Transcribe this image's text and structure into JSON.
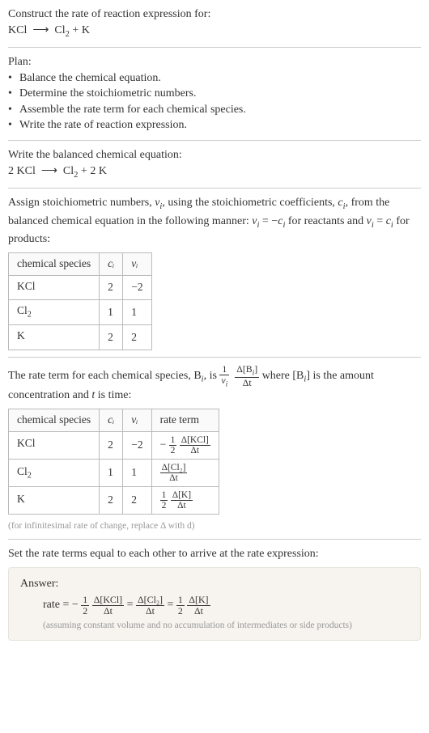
{
  "intro": {
    "line1": "Construct the rate of reaction expression for:",
    "eq_lhs": "KCl",
    "arrow": "⟶",
    "eq_rhs1": "Cl",
    "eq_rhs1_sub": "2",
    "plus": " + ",
    "eq_rhs2": "K"
  },
  "plan": {
    "heading": "Plan:",
    "bullets": [
      "Balance the chemical equation.",
      "Determine the stoichiometric numbers.",
      "Assemble the rate term for each chemical species.",
      "Write the rate of reaction expression."
    ]
  },
  "balanced": {
    "line1": "Write the balanced chemical equation:",
    "lhs_coef": "2 ",
    "lhs": "KCl",
    "arrow": "⟶",
    "rhs1": "Cl",
    "rhs1_sub": "2",
    "plus": " + ",
    "rhs2_coef": "2 ",
    "rhs2": "K"
  },
  "assign": {
    "text_a": "Assign stoichiometric numbers, ",
    "nu": "ν",
    "i": "i",
    "text_b": ", using the stoichiometric coefficients, ",
    "c": "c",
    "text_c": ", from the balanced chemical equation in the following manner: ",
    "eq1": " = −",
    "text_d": " for reactants and ",
    "eq2": " = ",
    "text_e": " for products:"
  },
  "table1": {
    "h1": "chemical species",
    "h2": "cᵢ",
    "h3": "νᵢ",
    "rows": [
      {
        "species": "KCl",
        "species_sub": "",
        "c": "2",
        "nu": "−2"
      },
      {
        "species": "Cl",
        "species_sub": "2",
        "c": "1",
        "nu": "1"
      },
      {
        "species": "K",
        "species_sub": "",
        "c": "2",
        "nu": "2"
      }
    ]
  },
  "rateterm": {
    "text_a": "The rate term for each chemical species, B",
    "text_b": ", is ",
    "one": "1",
    "nu": "ν",
    "i": "i",
    "dB": "Δ[B",
    "dB_close": "]",
    "dt": "Δt",
    "text_c": " where [B",
    "text_d": "] is the amount concentration and ",
    "tvar": "t",
    "text_e": " is time:"
  },
  "table2": {
    "h1": "chemical species",
    "h2": "cᵢ",
    "h3": "νᵢ",
    "h4": "rate term",
    "rows": [
      {
        "species": "KCl",
        "species_sub": "",
        "c": "2",
        "nu": "−2",
        "neg": "− ",
        "coef_num": "1",
        "coef_den": "2",
        "d_top": "Δ[KCl]",
        "d_bot": "Δt",
        "has_coef": true
      },
      {
        "species": "Cl",
        "species_sub": "2",
        "c": "1",
        "nu": "1",
        "neg": "",
        "coef_num": "",
        "coef_den": "",
        "d_top": "Δ[Cl₂]",
        "d_bot": "Δt",
        "has_coef": false
      },
      {
        "species": "K",
        "species_sub": "",
        "c": "2",
        "nu": "2",
        "neg": "",
        "coef_num": "1",
        "coef_den": "2",
        "d_top": "Δ[K]",
        "d_bot": "Δt",
        "has_coef": true
      }
    ],
    "note": "(for infinitesimal rate of change, replace Δ with d)"
  },
  "setequal": "Set the rate terms equal to each other to arrive at the rate expression:",
  "answer": {
    "label": "Answer:",
    "rate": "rate = ",
    "neg": "− ",
    "half_num": "1",
    "half_den": "2",
    "t1_top": "Δ[KCl]",
    "t1_bot": "Δt",
    "eq": " = ",
    "t2_top": "Δ[Cl₂]",
    "t2_bot": "Δt",
    "t3_top": "Δ[K]",
    "t3_bot": "Δt",
    "assume": "(assuming constant volume and no accumulation of intermediates or side products)"
  },
  "colors": {
    "text": "#333333",
    "divider": "#cccccc",
    "table_border": "#bbbbbb",
    "note": "#999999",
    "answer_bg": "#f7f4ef",
    "answer_border": "#e8e4db"
  }
}
